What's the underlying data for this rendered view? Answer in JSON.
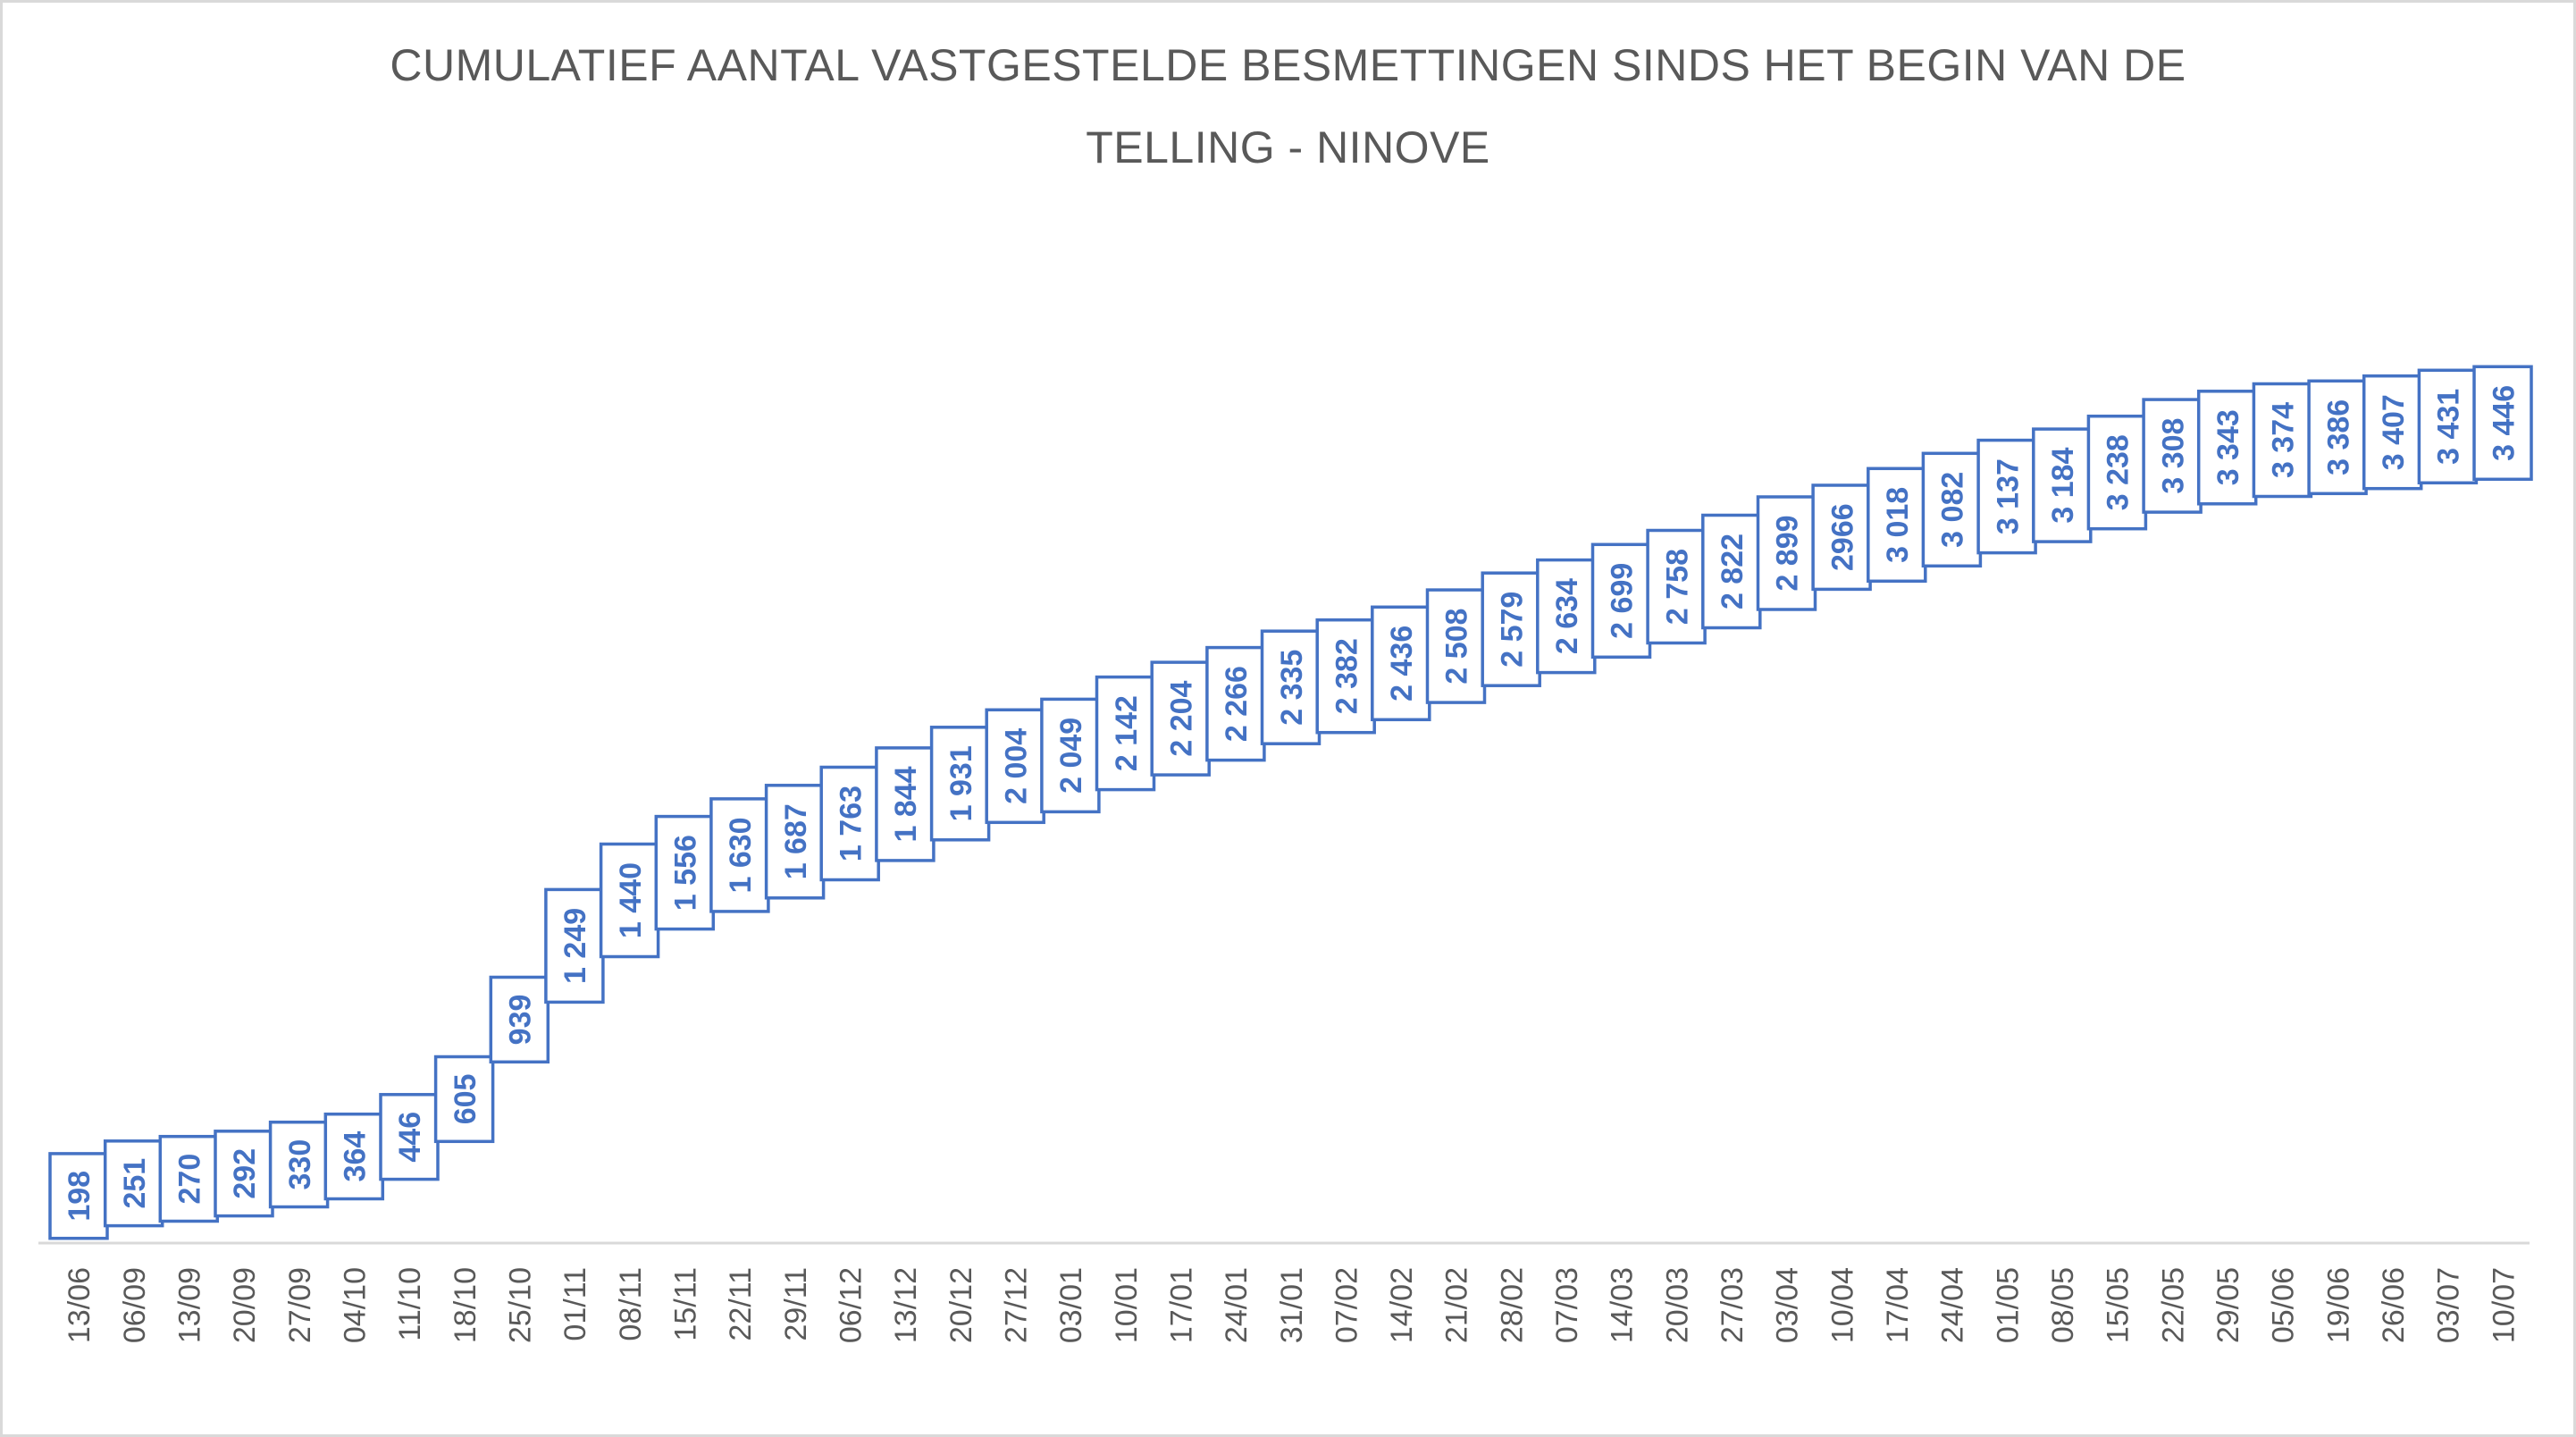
{
  "chart_data": {
    "type": "line",
    "title": "CUMULATIEF AANTAL VASTGESTELDE BESMETTINGEN SINDS HET BEGIN VAN DE TELLING - NINOVE",
    "title_lines": [
      "CUMULATIEF AANTAL VASTGESTELDE BESMETTINGEN SINDS HET BEGIN VAN DE",
      "TELLING - NINOVE"
    ],
    "categories": [
      "13/06",
      "06/09",
      "13/09",
      "20/09",
      "27/09",
      "04/10",
      "11/10",
      "18/10",
      "25/10",
      "01/11",
      "08/11",
      "15/11",
      "22/11",
      "29/11",
      "06/12",
      "13/12",
      "20/12",
      "27/12",
      "03/01",
      "10/01",
      "17/01",
      "24/01",
      "31/01",
      "07/02",
      "14/02",
      "21/02",
      "28/02",
      "07/03",
      "14/03",
      "20/03",
      "27/03",
      "03/04",
      "10/04",
      "17/04",
      "24/04",
      "01/05",
      "08/05",
      "15/05",
      "22/05",
      "29/05",
      "05/06",
      "19/06",
      "26/06",
      "03/07",
      "10/07"
    ],
    "values": [
      198,
      251,
      270,
      292,
      330,
      364,
      446,
      605,
      939,
      1249,
      1440,
      1556,
      1630,
      1687,
      1763,
      1844,
      1931,
      2004,
      2049,
      2142,
      2204,
      2266,
      2335,
      2382,
      2436,
      2508,
      2579,
      2634,
      2699,
      2758,
      2822,
      2899,
      2966,
      3018,
      3082,
      3137,
      3184,
      3238,
      3308,
      3343,
      3374,
      3386,
      3407,
      3431,
      3446
    ],
    "value_labels": [
      "198",
      "251",
      "270",
      "292",
      "330",
      "364",
      "446",
      "605",
      "939",
      "1 249",
      "1 440",
      "1 556",
      "1 630",
      "1 687",
      "1 763",
      "1 844",
      "1 931",
      "2 004",
      "2 049",
      "2 142",
      "2 204",
      "2 266",
      "2 335",
      "2 382",
      "2 436",
      "2 508",
      "2 579",
      "2 634",
      "2 699",
      "2 758",
      "2 822",
      "2 899",
      "2966",
      "3 018",
      "3 082",
      "3 137",
      "3 184",
      "3 238",
      "3 308",
      "3 343",
      "3 374",
      "3 386",
      "3 407",
      "3 431",
      "3 446"
    ],
    "xlabel": "",
    "ylabel": "",
    "ylim": [
      0,
      3500
    ],
    "grid": false,
    "legend": false,
    "colors": {
      "accent": "#4472C4",
      "label_text": "#4472C4",
      "label_box_fill": "#FFFFFF",
      "axis_text": "#595959",
      "axis_line": "#D9D9D9",
      "frame": "#D9D9D9",
      "background": "#FFFFFF"
    }
  }
}
